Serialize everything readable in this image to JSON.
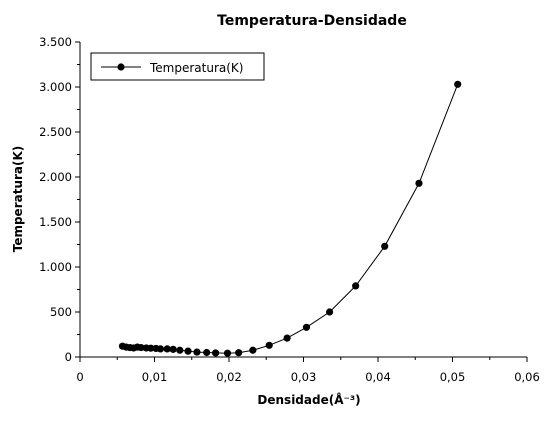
{
  "chart_data": {
    "type": "line",
    "title": "Temperatura-Densidade",
    "xlabel": "Densidade(Å⁻³)",
    "ylabel": "Temperatura(K)",
    "xlim": [
      0,
      0.06
    ],
    "ylim": [
      0,
      3500
    ],
    "x_ticks": [
      0,
      0.01,
      0.02,
      0.03,
      0.04,
      0.05,
      0.06
    ],
    "x_tick_labels": [
      "0",
      "0,01",
      "0,02",
      "0,03",
      "0,04",
      "0,05",
      "0,06"
    ],
    "y_ticks": [
      0,
      500,
      1000,
      1500,
      2000,
      2500,
      3000,
      3500
    ],
    "y_tick_labels": [
      "0",
      "500",
      "1.000",
      "1.500",
      "2.000",
      "2.500",
      "3.000",
      "3.500"
    ],
    "grid": false,
    "legend_position": "top-left",
    "series": [
      {
        "name": "Temperatura(K)",
        "color": "#000000",
        "marker": "circle",
        "x": [
          0.0057,
          0.0062,
          0.0067,
          0.0072,
          0.0077,
          0.0082,
          0.0089,
          0.0095,
          0.0102,
          0.0108,
          0.0117,
          0.0125,
          0.0134,
          0.0145,
          0.0157,
          0.017,
          0.0182,
          0.0198,
          0.0213,
          0.0232,
          0.0254,
          0.0278,
          0.0304,
          0.0335,
          0.037,
          0.0409,
          0.0455,
          0.0507
        ],
        "y": [
          120,
          110,
          105,
          100,
          110,
          105,
          100,
          98,
          95,
          90,
          90,
          85,
          75,
          65,
          55,
          50,
          45,
          42,
          48,
          75,
          130,
          210,
          330,
          500,
          790,
          1230,
          1930,
          3030
        ]
      }
    ]
  }
}
